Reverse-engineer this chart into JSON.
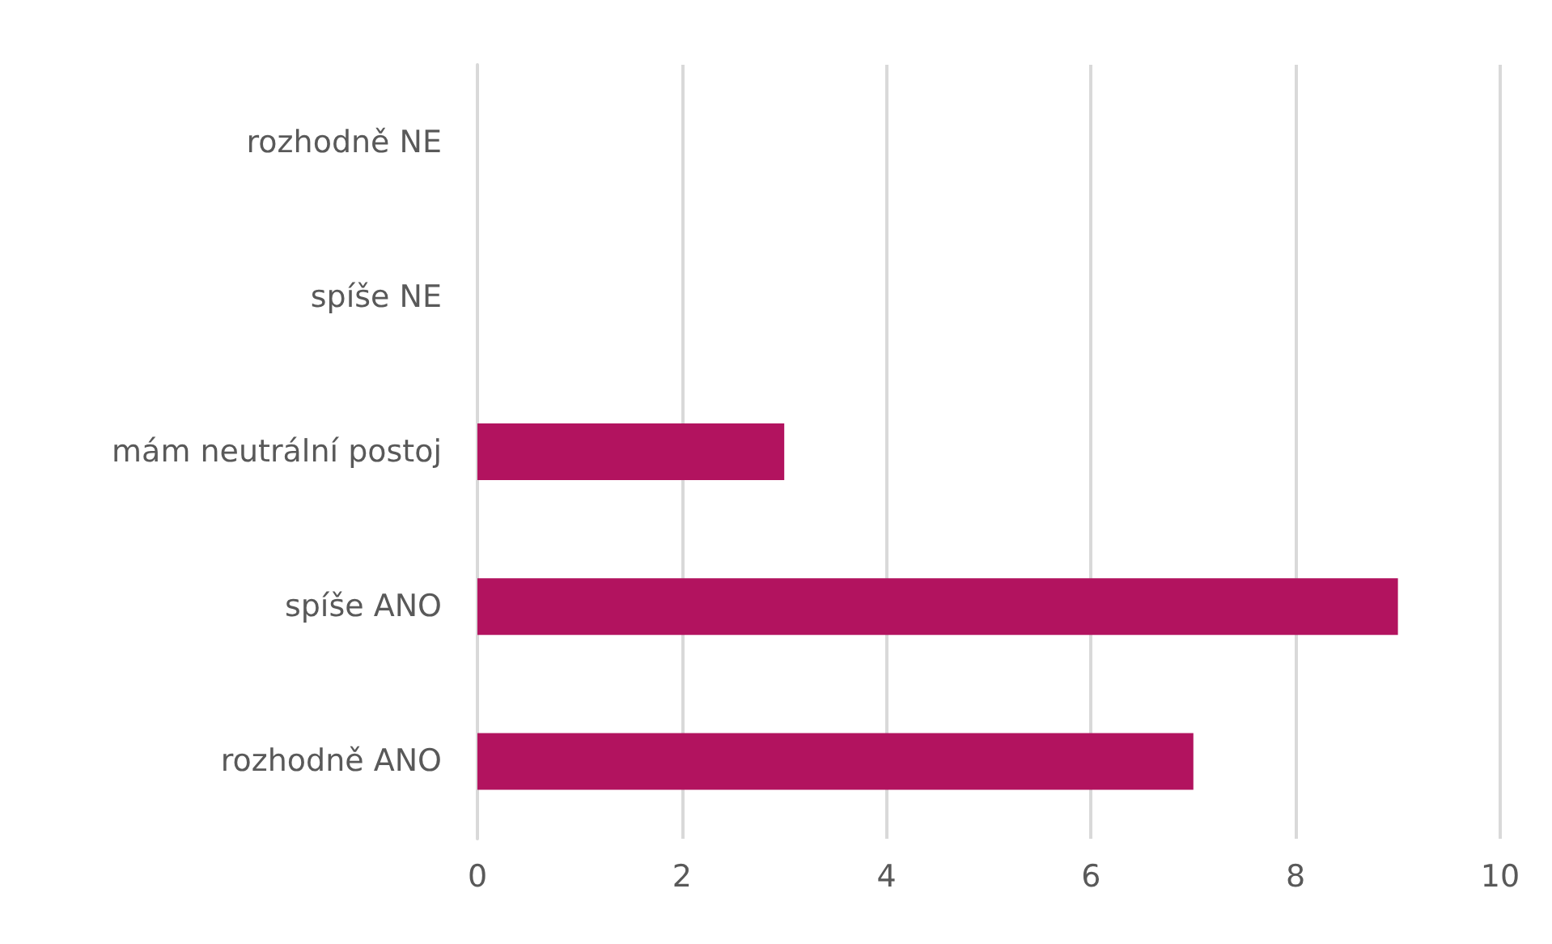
{
  "chart_data": {
    "type": "bar",
    "orientation": "horizontal",
    "categories": [
      "rozhodně NE",
      "spíše NE",
      "mám neutrální postoj",
      "spíše ANO",
      "rozhodně ANO"
    ],
    "values": [
      0,
      0,
      3,
      9,
      7
    ],
    "color": "#b2135f",
    "xlim": [
      0,
      10
    ],
    "xticks": [
      0,
      2,
      4,
      6,
      8,
      10
    ],
    "grid": "x"
  }
}
